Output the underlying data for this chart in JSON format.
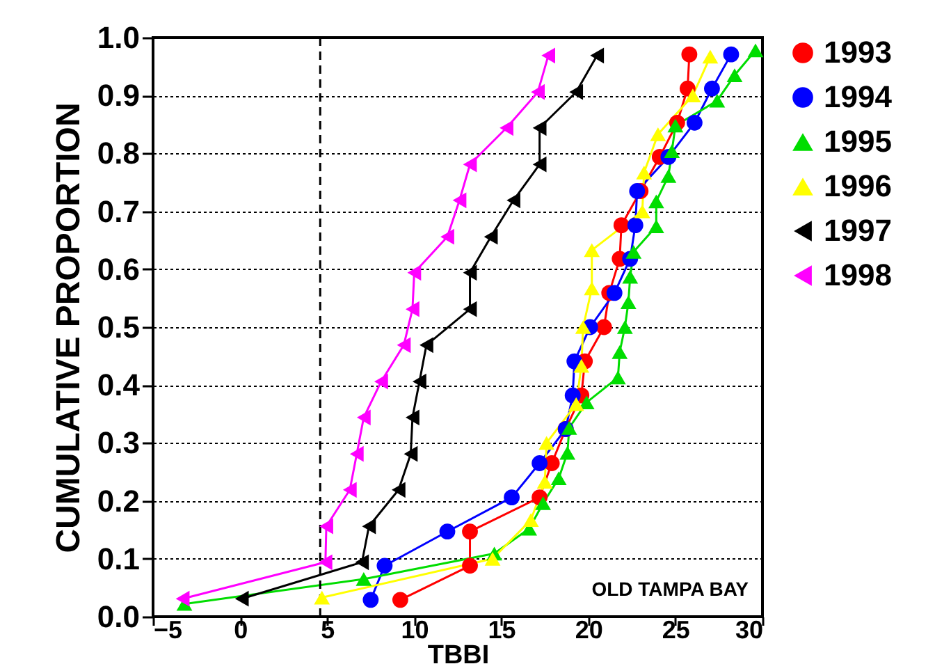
{
  "chart_data": {
    "type": "line",
    "xlabel": "TBBI",
    "ylabel": "CUMULATIVE PROPORTION",
    "xlim": [
      -5,
      30
    ],
    "xticks": [
      -5,
      0,
      5,
      10,
      15,
      20,
      25,
      30
    ],
    "ylim": [
      0,
      1
    ],
    "yticks": [
      {
        "value": 0,
        "label": "0.0"
      },
      0.1,
      0.2,
      0.3,
      0.4,
      0.5,
      0.6,
      0.7,
      0.8,
      0.9,
      {
        "value": 1,
        "label": "1.0"
      }
    ],
    "grid": "y",
    "legend": "right",
    "line_style": "solid",
    "annotations": [
      "OLD TAMPA BAY"
    ],
    "ref_lines": [
      {
        "axis": "x",
        "value": 4.6,
        "color": "#000000",
        "line_style": "dashed"
      }
    ],
    "series": [
      {
        "name": "1993",
        "color": "#ff0000",
        "marker": "circle",
        "x": [
          9.2,
          13.2,
          13.2,
          17.2,
          17.9,
          18.7,
          19.6,
          19.8,
          20.9,
          21.2,
          21.8,
          21.9,
          23.0,
          24.1,
          25.1,
          25.7,
          25.8
        ],
        "values": [
          0.029,
          0.088,
          0.147,
          0.206,
          0.265,
          0.324,
          0.382,
          0.441,
          0.5,
          0.559,
          0.618,
          0.676,
          0.735,
          0.794,
          0.853,
          0.912,
          0.971
        ]
      },
      {
        "name": "1994",
        "color": "#0000ff",
        "marker": "circle",
        "x": [
          7.5,
          8.3,
          11.9,
          15.6,
          17.2,
          18.7,
          19.1,
          19.2,
          20.1,
          21.5,
          22.4,
          22.7,
          22.8,
          24.6,
          26.1,
          27.1,
          28.2
        ],
        "values": [
          0.029,
          0.088,
          0.147,
          0.206,
          0.265,
          0.324,
          0.382,
          0.441,
          0.5,
          0.559,
          0.618,
          0.676,
          0.735,
          0.794,
          0.853,
          0.912,
          0.971
        ]
      },
      {
        "name": "1995",
        "color": "#00dd00",
        "marker": "triangle",
        "x": [
          -3.2,
          7.1,
          14.6,
          16.6,
          17.4,
          18.3,
          18.8,
          18.9,
          19.9,
          21.7,
          21.8,
          22.1,
          22.3,
          22.4,
          22.6,
          23.9,
          23.9,
          24.6,
          24.8,
          25.0,
          27.4,
          28.4,
          29.6
        ],
        "values": [
          0.022,
          0.065,
          0.109,
          0.152,
          0.196,
          0.239,
          0.283,
          0.326,
          0.37,
          0.413,
          0.457,
          0.5,
          0.543,
          0.587,
          0.63,
          0.674,
          0.717,
          0.761,
          0.804,
          0.848,
          0.891,
          0.935,
          0.978
        ]
      },
      {
        "name": "1996",
        "color": "#ffff00",
        "marker": "triangle",
        "x": [
          4.7,
          14.5,
          16.7,
          17.5,
          17.6,
          19.3,
          19.6,
          19.7,
          20.2,
          20.2,
          23.1,
          23.2,
          24.0,
          26.0,
          27.0
        ],
        "values": [
          0.033,
          0.1,
          0.167,
          0.233,
          0.3,
          0.367,
          0.433,
          0.5,
          0.567,
          0.633,
          0.7,
          0.767,
          0.833,
          0.9,
          0.967
        ]
      },
      {
        "name": "1997",
        "color": "#000000",
        "marker": "triangle-left",
        "x": [
          0.1,
          7.0,
          7.4,
          9.1,
          9.8,
          9.9,
          10.3,
          10.7,
          13.2,
          13.2,
          14.4,
          15.7,
          17.2,
          17.2,
          19.3,
          20.5
        ],
        "values": [
          0.031,
          0.094,
          0.156,
          0.219,
          0.281,
          0.344,
          0.406,
          0.469,
          0.531,
          0.594,
          0.656,
          0.719,
          0.781,
          0.844,
          0.906,
          0.969
        ]
      },
      {
        "name": "1998",
        "color": "#ff00ff",
        "marker": "triangle-left",
        "x": [
          -3.3,
          4.9,
          4.95,
          6.3,
          6.7,
          7.1,
          8.1,
          9.4,
          9.9,
          10.0,
          11.9,
          12.6,
          13.2,
          15.3,
          17.1,
          17.7
        ],
        "values": [
          0.031,
          0.094,
          0.156,
          0.219,
          0.281,
          0.344,
          0.406,
          0.469,
          0.531,
          0.594,
          0.656,
          0.719,
          0.781,
          0.844,
          0.906,
          0.969
        ]
      }
    ]
  }
}
